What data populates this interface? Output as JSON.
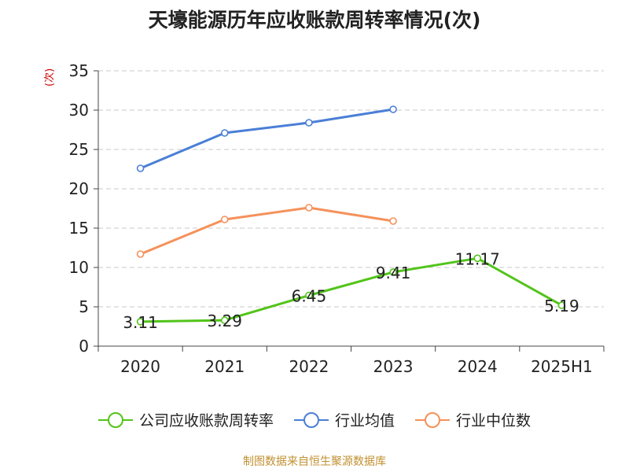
{
  "title": "天壕能源历年应收账款周转率情况(次)",
  "source": "制图数据来自恒生聚源数据库",
  "chart_data": {
    "type": "line",
    "categories": [
      "2020",
      "2021",
      "2022",
      "2023",
      "2024",
      "2025H1"
    ],
    "yunit": "(次)",
    "ylim": [
      0,
      35
    ],
    "yticks": [
      0,
      5,
      10,
      15,
      20,
      25,
      30,
      35
    ],
    "grid": true,
    "legend_position": "bottom",
    "series": [
      {
        "name": "公司应收账款周转率",
        "color": "#52c41a",
        "values": [
          3.11,
          3.29,
          6.45,
          9.41,
          11.17,
          5.19
        ],
        "labels": [
          "3.11",
          "3.29",
          "6.45",
          "9.41",
          "11.17",
          "5.19"
        ]
      },
      {
        "name": "行业均值",
        "color": "#4a7fd6",
        "values": [
          22.6,
          27.1,
          28.4,
          30.1,
          null,
          null
        ]
      },
      {
        "name": "行业中位数",
        "color": "#f5915a",
        "values": [
          11.7,
          16.1,
          17.6,
          15.9,
          null,
          null
        ]
      }
    ]
  }
}
